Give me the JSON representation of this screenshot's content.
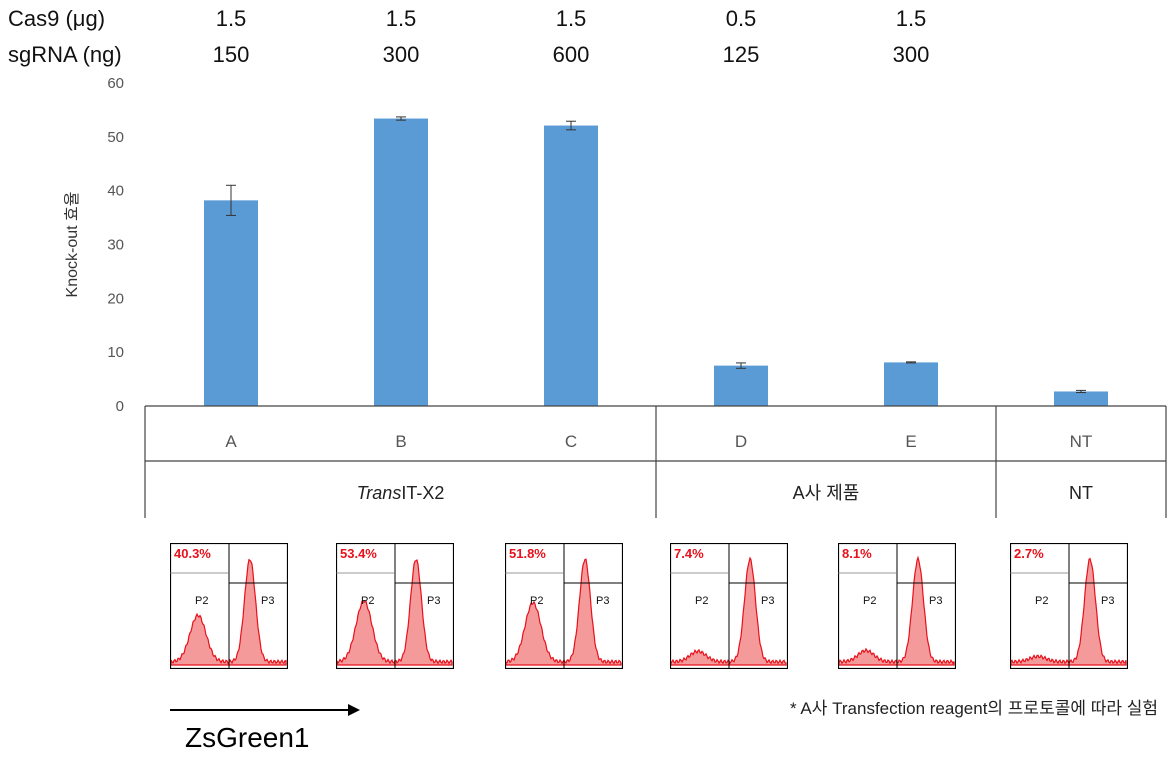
{
  "conditions": {
    "cas9_label": "Cas9 (μg)",
    "sgrna_label": "sgRNA (ng)",
    "cas9": [
      "1.5",
      "1.5",
      "1.5",
      "0.5",
      "1.5"
    ],
    "sgrna": [
      "150",
      "300",
      "600",
      "125",
      "300"
    ]
  },
  "chart_data": {
    "type": "bar",
    "ylabel": "Knock-out 효율",
    "ylim": [
      0,
      60
    ],
    "yticks": [
      0,
      10,
      20,
      30,
      40,
      50,
      60
    ],
    "categories": [
      "A",
      "B",
      "C",
      "D",
      "E",
      "NT"
    ],
    "values": [
      38.2,
      53.4,
      52.1,
      7.5,
      8.1,
      2.7
    ],
    "errors": [
      2.8,
      0.3,
      0.8,
      0.5,
      0.1,
      0.2
    ],
    "bar_color": "#5b9bd5",
    "grid": false,
    "groups": [
      {
        "label_prefix": "Trans",
        "label_rest": "IT-X2",
        "categories": [
          "A",
          "B",
          "C"
        ]
      },
      {
        "label_prefix": "",
        "label_rest": "A사 제품",
        "categories": [
          "D",
          "E"
        ]
      },
      {
        "label_prefix": "",
        "label_rest": "NT",
        "categories": [
          "NT"
        ]
      }
    ]
  },
  "flow_panels": [
    {
      "percent": "40.3%",
      "p2": "P2",
      "p3": "P3"
    },
    {
      "percent": "53.4%",
      "p2": "P2",
      "p3": "P3"
    },
    {
      "percent": "51.8%",
      "p2": "P2",
      "p3": "P3"
    },
    {
      "percent": "7.4%",
      "p2": "P2",
      "p3": "P3"
    },
    {
      "percent": "8.1%",
      "p2": "P2",
      "p3": "P3"
    },
    {
      "percent": "2.7%",
      "p2": "P2",
      "p3": "P3"
    }
  ],
  "flow_axis_label": "ZsGreen1",
  "footnote": "* A사 Transfection reagent의 프로토콜에 따라 실험",
  "colors": {
    "histogram": "#e8101a",
    "histogram_fill": "#f49a9a"
  }
}
